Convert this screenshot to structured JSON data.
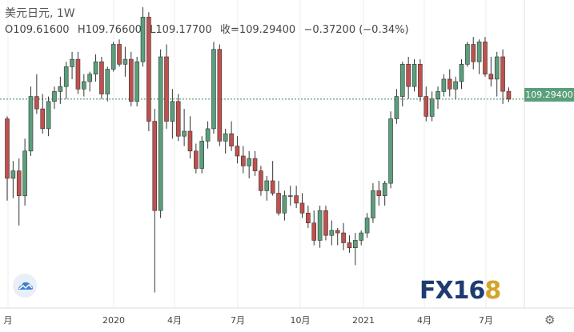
{
  "header": {
    "symbol": "美元日元, 1W",
    "open": "O109.61600",
    "high": "H109.76600",
    "low": "L109.17700",
    "close": "收=109.29400",
    "change": "−0.37200 (−0.34%)"
  },
  "price_tag": "109.29400",
  "logo": {
    "text": "FX16",
    "accent": "8"
  },
  "icons": {
    "cloud": "cloud-icon",
    "settings": "gear-icon"
  },
  "colors": {
    "up": "#5a9f7b",
    "down": "#c0504d",
    "grid": "#eeeeee",
    "axis_text": "#444444"
  },
  "chart_data": {
    "type": "candlestick",
    "title": "",
    "xlabel": "",
    "ylabel": "",
    "x_ticks": [
      "月",
      "2020",
      "4月",
      "7月",
      "10月",
      "2021",
      "4月",
      "7月"
    ],
    "ylim": [
      102,
      112
    ],
    "last_price": 109.294,
    "candles": [
      [
        108.5,
        108.6,
        105.2,
        106.1
      ],
      [
        106.1,
        106.8,
        105.3,
        106.4
      ],
      [
        106.4,
        106.9,
        104.2,
        105.4
      ],
      [
        105.4,
        107.7,
        105.0,
        107.2
      ],
      [
        107.2,
        109.8,
        107.0,
        109.4
      ],
      [
        109.4,
        110.3,
        108.7,
        108.9
      ],
      [
        108.9,
        109.5,
        107.9,
        108.1
      ],
      [
        108.1,
        109.4,
        107.8,
        109.2
      ],
      [
        109.2,
        109.8,
        108.9,
        109.6
      ],
      [
        109.6,
        110.2,
        109.1,
        109.8
      ],
      [
        109.8,
        110.8,
        109.3,
        110.6
      ],
      [
        110.6,
        111.2,
        110.1,
        110.9
      ],
      [
        110.9,
        111.2,
        109.5,
        109.7
      ],
      [
        109.7,
        110.3,
        109.4,
        110.0
      ],
      [
        110.0,
        110.4,
        109.6,
        110.3
      ],
      [
        110.3,
        111.1,
        110.0,
        110.8
      ],
      [
        110.8,
        111.0,
        109.3,
        109.5
      ],
      [
        109.5,
        110.6,
        109.2,
        110.5
      ],
      [
        110.5,
        111.6,
        110.4,
        111.5
      ],
      [
        111.5,
        111.7,
        110.6,
        110.7
      ],
      [
        110.7,
        111.4,
        110.2,
        110.9
      ],
      [
        110.9,
        111.2,
        109.0,
        109.2
      ],
      [
        109.2,
        111.0,
        109.0,
        110.8
      ],
      [
        110.8,
        113.0,
        110.6,
        112.6
      ],
      [
        112.6,
        112.8,
        108.0,
        108.4
      ],
      [
        108.4,
        108.9,
        101.5,
        104.8
      ],
      [
        104.8,
        111.3,
        104.5,
        111.0
      ],
      [
        111.0,
        111.5,
        108.1,
        108.4
      ],
      [
        108.4,
        109.7,
        107.7,
        109.2
      ],
      [
        109.2,
        109.5,
        107.6,
        107.8
      ],
      [
        107.8,
        108.9,
        107.4,
        108.0
      ],
      [
        108.0,
        108.6,
        106.9,
        107.2
      ],
      [
        107.2,
        107.5,
        106.3,
        106.5
      ],
      [
        106.5,
        107.8,
        106.3,
        107.6
      ],
      [
        107.6,
        108.4,
        107.3,
        108.1
      ],
      [
        108.1,
        111.6,
        107.9,
        111.3
      ],
      [
        111.3,
        111.5,
        107.4,
        107.6
      ],
      [
        107.6,
        108.1,
        107.1,
        107.9
      ],
      [
        107.9,
        108.4,
        107.2,
        107.4
      ],
      [
        107.4,
        107.8,
        106.7,
        107.0
      ],
      [
        107.0,
        107.4,
        106.3,
        106.6
      ],
      [
        106.6,
        107.2,
        106.1,
        106.9
      ],
      [
        106.9,
        107.2,
        106.2,
        106.4
      ],
      [
        106.4,
        106.6,
        105.4,
        105.6
      ],
      [
        105.6,
        106.2,
        105.2,
        106.0
      ],
      [
        106.0,
        106.8,
        105.4,
        105.5
      ],
      [
        105.5,
        106.0,
        104.6,
        104.7
      ],
      [
        104.7,
        105.6,
        104.4,
        105.4
      ],
      [
        105.4,
        105.8,
        105.0,
        105.4
      ],
      [
        105.4,
        105.8,
        104.9,
        105.1
      ],
      [
        105.1,
        105.5,
        104.5,
        104.7
      ],
      [
        104.7,
        105.0,
        104.1,
        104.3
      ],
      [
        104.3,
        104.8,
        103.4,
        103.6
      ],
      [
        103.6,
        105.0,
        103.3,
        104.8
      ],
      [
        104.8,
        105.0,
        103.6,
        103.8
      ],
      [
        103.8,
        104.4,
        103.4,
        104.0
      ],
      [
        104.0,
        104.1,
        103.4,
        103.9
      ],
      [
        103.9,
        104.3,
        103.2,
        103.5
      ],
      [
        103.5,
        103.8,
        103.1,
        103.3
      ],
      [
        103.3,
        103.9,
        102.6,
        103.6
      ],
      [
        103.6,
        104.0,
        103.4,
        103.9
      ],
      [
        103.9,
        104.7,
        103.7,
        104.5
      ],
      [
        104.5,
        105.9,
        104.3,
        105.6
      ],
      [
        105.6,
        106.0,
        105.0,
        105.4
      ],
      [
        105.4,
        106.0,
        105.0,
        105.9
      ],
      [
        105.9,
        108.8,
        105.7,
        108.5
      ],
      [
        108.5,
        109.7,
        108.3,
        109.4
      ],
      [
        109.4,
        110.8,
        109.0,
        110.7
      ],
      [
        110.7,
        111.0,
        109.3,
        109.8
      ],
      [
        109.8,
        110.9,
        109.6,
        110.7
      ],
      [
        110.7,
        110.9,
        109.2,
        109.4
      ],
      [
        109.4,
        109.8,
        108.4,
        108.6
      ],
      [
        108.6,
        109.6,
        108.4,
        109.3
      ],
      [
        109.3,
        109.8,
        108.9,
        109.6
      ],
      [
        109.6,
        110.3,
        109.4,
        110.1
      ],
      [
        110.1,
        110.5,
        109.4,
        109.7
      ],
      [
        109.7,
        110.2,
        109.3,
        110.0
      ],
      [
        110.0,
        110.9,
        109.7,
        110.7
      ],
      [
        110.7,
        111.6,
        110.6,
        111.5
      ],
      [
        111.5,
        111.8,
        110.5,
        110.8
      ],
      [
        110.8,
        111.7,
        110.3,
        111.6
      ],
      [
        111.6,
        111.8,
        110.2,
        110.3
      ],
      [
        110.3,
        111.0,
        109.8,
        110.1
      ],
      [
        110.1,
        111.2,
        109.4,
        111.0
      ],
      [
        111.0,
        111.3,
        109.1,
        109.61
      ],
      [
        109.61,
        109.766,
        109.177,
        109.294
      ]
    ]
  }
}
